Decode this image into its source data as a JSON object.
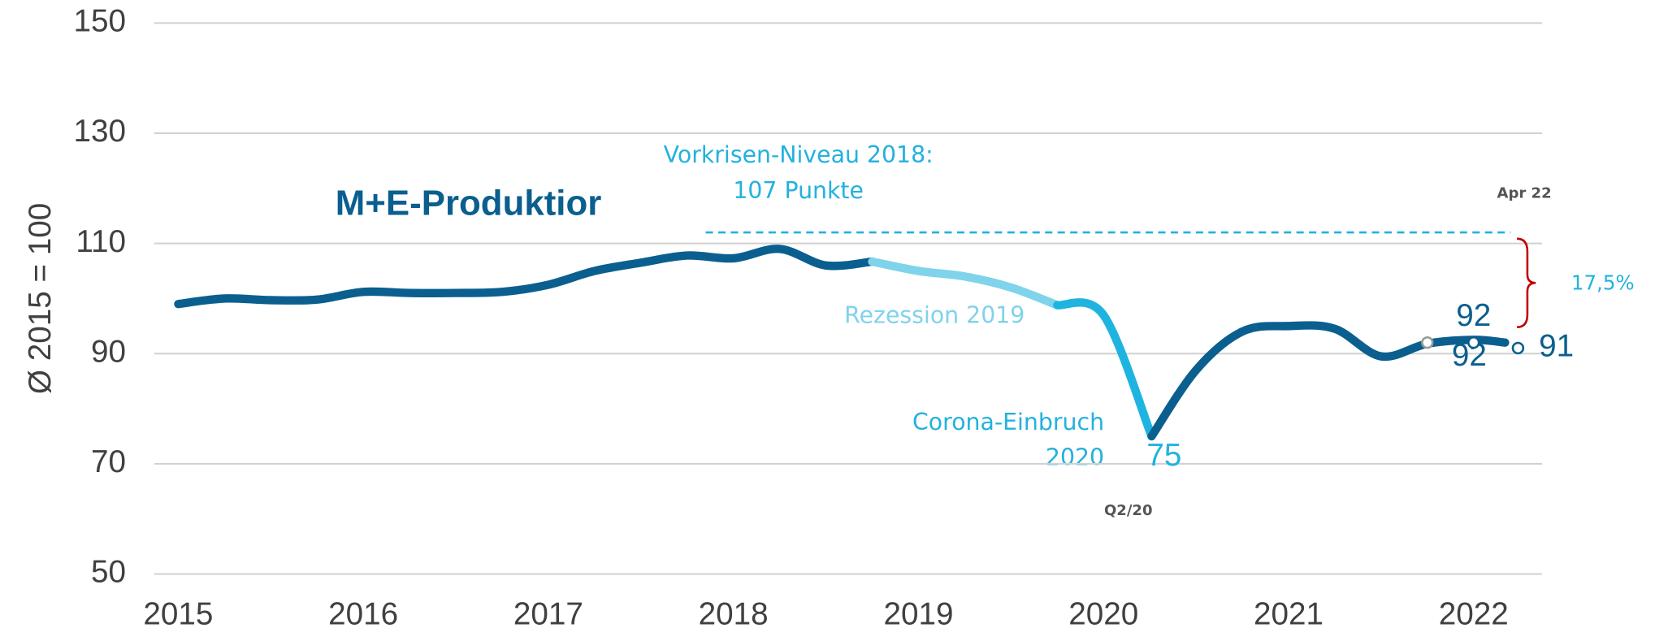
{
  "chart_data": {
    "type": "line",
    "title": "M+E-Produktior",
    "y_label": "Ø 2015 = 100",
    "xlim": [
      2014.87,
      2022.37
    ],
    "ylim": [
      50,
      150
    ],
    "xticks": [
      2015,
      2016,
      2017,
      2018,
      2019,
      2020,
      2021,
      2022
    ],
    "yticks": [
      50,
      70,
      90,
      110,
      130,
      150
    ],
    "grid": true,
    "series": [
      {
        "color": "#0a5f8f",
        "x": [
          2015.0,
          2015.25,
          2015.5,
          2015.75,
          2016.0,
          2016.25,
          2016.5,
          2016.75,
          2017.0,
          2017.25,
          2017.5,
          2017.75,
          2018.0,
          2018.25,
          2018.5,
          2018.75
        ],
        "values": [
          99,
          100,
          99.7,
          99.8,
          101.2,
          101,
          101,
          101.2,
          102.5,
          105,
          106.5,
          107.8,
          107.3,
          109,
          106,
          106.7
        ]
      },
      {
        "color": "#7fd3ea",
        "x": [
          2018.75,
          2019.0,
          2019.25,
          2019.5,
          2019.75
        ],
        "values": [
          106.7,
          105,
          104,
          102,
          98.8
        ]
      },
      {
        "color": "#1fb4e0",
        "x": [
          2019.75,
          2020.0,
          2020.26
        ],
        "values": [
          98.8,
          97,
          75
        ]
      },
      {
        "color": "#0a5f8f",
        "x": [
          2020.26,
          2020.5,
          2020.75,
          2021.0,
          2021.25,
          2021.5,
          2021.75,
          2022.0,
          2022.17
        ],
        "values": [
          75,
          87,
          94,
          95,
          94.5,
          89.5,
          91.8,
          92.5,
          92
        ]
      }
    ],
    "points": {
      "x": [
        2020.26,
        2021.75,
        2022.0,
        2022.24
      ],
      "values": [
        75,
        92,
        92,
        91
      ]
    },
    "reference_line": {
      "value": 112,
      "x": [
        2017.85,
        2022.2
      ],
      "color": "#23b1de"
    },
    "annotations": {
      "pre_crisis": [
        "Vorkrisen-Niveau 2018:",
        "107 Punkte"
      ],
      "recession": "Rezession 2019",
      "corona": [
        "Corona-Einbruch",
        "2020"
      ],
      "apr": "Apr 22",
      "q2": "Q2/20",
      "gap": "17,5%"
    }
  }
}
